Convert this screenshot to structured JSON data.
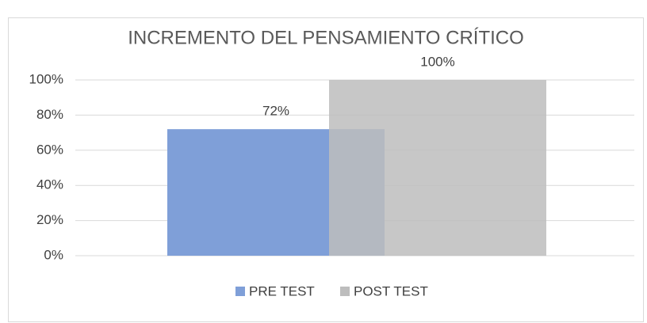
{
  "chart_data": {
    "type": "bar",
    "title": "INCREMENTO DEL PENSAMIENTO CRÍTICO",
    "categories": [
      null
    ],
    "series": [
      {
        "name": "PRE TEST",
        "color": "#7f9fd8",
        "values": [
          72
        ],
        "value_labels": [
          "72%"
        ]
      },
      {
        "name": "POST TEST",
        "color": "#bdbdbd",
        "values": [
          100
        ],
        "value_labels": [
          "100%"
        ]
      }
    ],
    "ylim": [
      0,
      100
    ],
    "yticks": [
      {
        "value": 0,
        "label": "0%"
      },
      {
        "value": 20,
        "label": "20%"
      },
      {
        "value": 40,
        "label": "40%"
      },
      {
        "value": 60,
        "label": "60%"
      },
      {
        "value": 80,
        "label": "80%"
      },
      {
        "value": 100,
        "label": "100%"
      }
    ],
    "grid": true,
    "legend": "bottom"
  }
}
